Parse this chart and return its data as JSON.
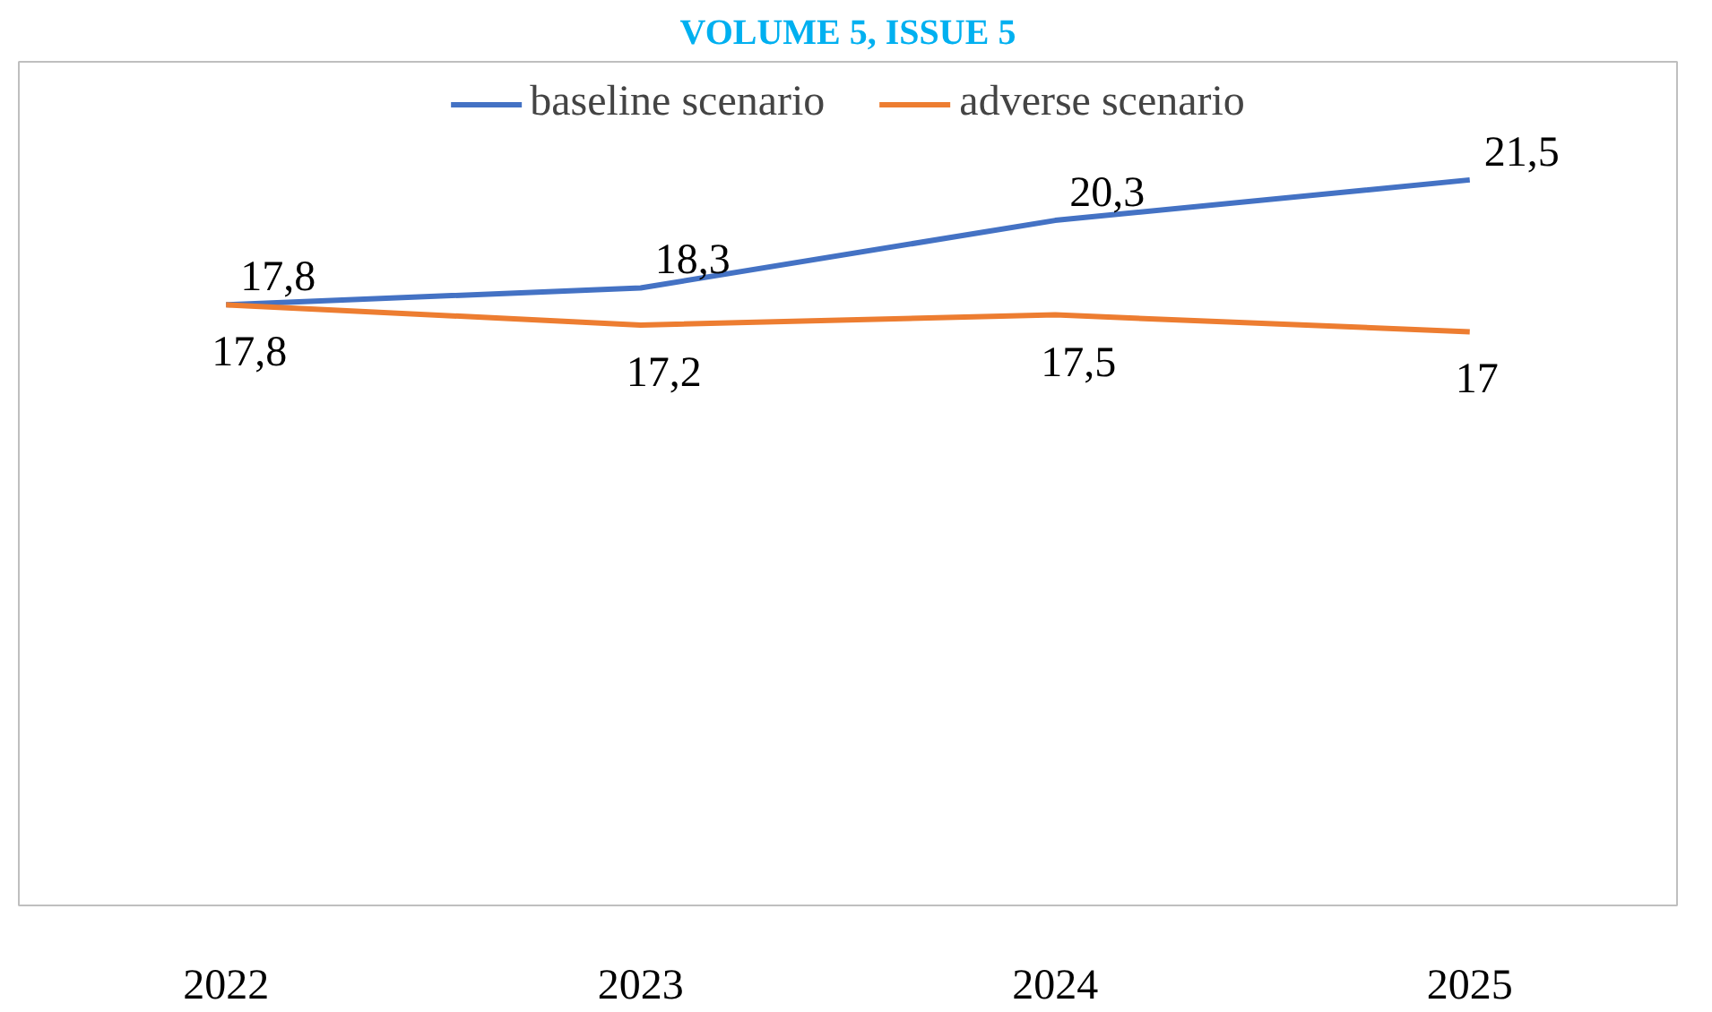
{
  "chart_data": {
    "type": "line",
    "title": "VOLUME 5, ISSUE 5",
    "categories": [
      "2022",
      "2023",
      "2024",
      "2025"
    ],
    "ylim": [
      0,
      25
    ],
    "grid": false,
    "legend": "top",
    "marker": "none",
    "line_style": "solid",
    "tick_labels": "x",
    "series": [
      {
        "name": "baseline scenario",
        "color": "#4472c4",
        "values": [
          17.8,
          18.3,
          20.3,
          21.5
        ],
        "value_labels": [
          "17,8",
          "18,3",
          "20,3",
          "21,5"
        ]
      },
      {
        "name": "adverse scenario",
        "color": "#ed7d31",
        "values": [
          17.8,
          17.2,
          17.5,
          17
        ],
        "value_labels": [
          "17,8",
          "17,2",
          "17,5",
          "17"
        ]
      }
    ]
  }
}
